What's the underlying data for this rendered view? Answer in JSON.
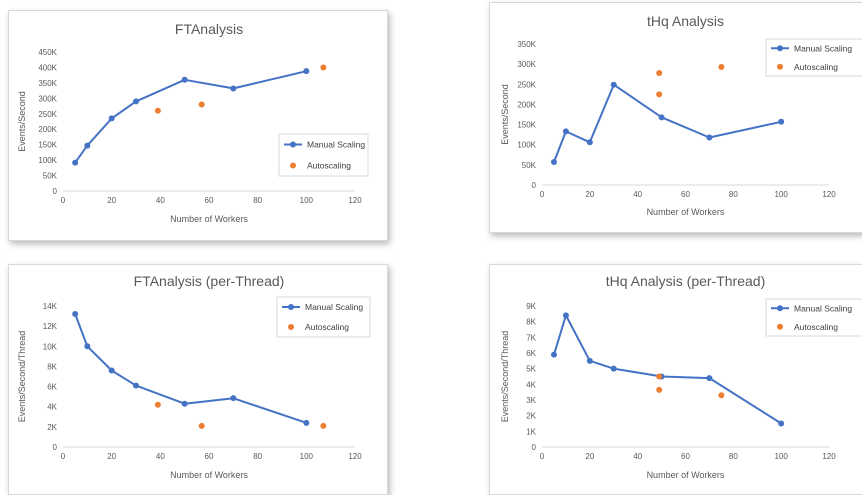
{
  "colors": {
    "manual": "#4472c4",
    "auto": "#ed7d31",
    "axis": "#d9d9d9",
    "text": "#595959"
  },
  "chart_data": [
    {
      "type": "scatter",
      "title": "FTAnalysis",
      "xlabel": "Number of Workers",
      "ylabel": "Events/Second",
      "xlim": [
        0,
        120
      ],
      "ylim": [
        0,
        450000
      ],
      "x_ticks": [
        0,
        20,
        40,
        60,
        80,
        100,
        120
      ],
      "x_tick_labels": [
        "0",
        "20",
        "40",
        "60",
        "80",
        "100",
        "120"
      ],
      "y_ticks": [
        0,
        50000,
        100000,
        150000,
        200000,
        250000,
        300000,
        350000,
        400000,
        450000
      ],
      "y_tick_labels": [
        "0",
        "50K",
        "100K",
        "150K",
        "200K",
        "250K",
        "300K",
        "350K",
        "400K",
        "450K"
      ],
      "grid": false,
      "legend": "right",
      "series": [
        {
          "name": "Manual Scaling",
          "style": "line-marker",
          "x": [
            5,
            10,
            20,
            30,
            50,
            70,
            100
          ],
          "y": [
            92000,
            147000,
            235000,
            290000,
            360000,
            332000,
            388000
          ]
        },
        {
          "name": "Autoscaling",
          "style": "marker",
          "x": [
            39,
            57,
            107
          ],
          "y": [
            260000,
            280000,
            400000
          ]
        }
      ]
    },
    {
      "type": "scatter",
      "title": "tHq Analysis",
      "xlabel": "Number of Workers",
      "ylabel": "Events/Second",
      "xlim": [
        0,
        120
      ],
      "ylim": [
        0,
        350000
      ],
      "x_ticks": [
        0,
        20,
        40,
        60,
        80,
        100,
        120
      ],
      "x_tick_labels": [
        "0",
        "20",
        "40",
        "60",
        "80",
        "100",
        "120"
      ],
      "y_ticks": [
        0,
        50000,
        100000,
        150000,
        200000,
        250000,
        300000,
        350000
      ],
      "y_tick_labels": [
        "0",
        "50K",
        "100K",
        "150K",
        "200K",
        "250K",
        "300K",
        "350K"
      ],
      "grid": false,
      "legend": "top-right",
      "series": [
        {
          "name": "Manual Scaling",
          "style": "line-marker",
          "x": [
            5,
            10,
            20,
            30,
            50,
            70,
            100
          ],
          "y": [
            57000,
            133000,
            106000,
            249000,
            168000,
            118000,
            157000
          ]
        },
        {
          "name": "Autoscaling",
          "style": "marker",
          "x": [
            49,
            49,
            75
          ],
          "y": [
            278000,
            225000,
            293000
          ]
        }
      ]
    },
    {
      "type": "scatter",
      "title": "FTAnalysis (per-Thread)",
      "xlabel": "Number of Workers",
      "ylabel": "Events/Second/Thread",
      "xlim": [
        0,
        120
      ],
      "ylim": [
        0,
        14000
      ],
      "x_ticks": [
        0,
        20,
        40,
        60,
        80,
        100,
        120
      ],
      "x_tick_labels": [
        "0",
        "20",
        "40",
        "60",
        "80",
        "100",
        "120"
      ],
      "y_ticks": [
        0,
        2000,
        4000,
        6000,
        8000,
        10000,
        12000,
        14000
      ],
      "y_tick_labels": [
        "0",
        "2K",
        "4K",
        "6K",
        "8K",
        "10K",
        "12K",
        "14K"
      ],
      "grid": false,
      "legend": "top-right",
      "series": [
        {
          "name": "Manual Scaling",
          "style": "line-marker",
          "x": [
            5,
            10,
            20,
            30,
            50,
            70,
            100
          ],
          "y": [
            13200,
            10000,
            7600,
            6100,
            4300,
            4850,
            2400
          ]
        },
        {
          "name": "Autoscaling",
          "style": "marker",
          "x": [
            39,
            57,
            107
          ],
          "y": [
            4200,
            2100,
            2100
          ]
        }
      ]
    },
    {
      "type": "scatter",
      "title": "tHq Analysis (per-Thread)",
      "xlabel": "Number of Workers",
      "ylabel": "Events/Second/Thread",
      "xlim": [
        0,
        120
      ],
      "ylim": [
        0,
        9000
      ],
      "x_ticks": [
        0,
        20,
        40,
        60,
        80,
        100,
        120
      ],
      "x_tick_labels": [
        "0",
        "20",
        "40",
        "60",
        "80",
        "100",
        "120"
      ],
      "y_ticks": [
        0,
        1000,
        2000,
        3000,
        4000,
        5000,
        6000,
        7000,
        8000,
        9000
      ],
      "y_tick_labels": [
        "0",
        "1K",
        "2K",
        "3K",
        "4K",
        "5K",
        "6K",
        "7K",
        "8K",
        "9K"
      ],
      "grid": false,
      "legend": "top-right",
      "series": [
        {
          "name": "Manual Scaling",
          "style": "line-marker",
          "x": [
            5,
            10,
            20,
            30,
            50,
            70,
            100
          ],
          "y": [
            5900,
            8400,
            5500,
            5000,
            4500,
            4400,
            1500
          ]
        },
        {
          "name": "Autoscaling",
          "style": "marker",
          "x": [
            49,
            49,
            75
          ],
          "y": [
            4500,
            3650,
            3300
          ]
        }
      ]
    }
  ]
}
